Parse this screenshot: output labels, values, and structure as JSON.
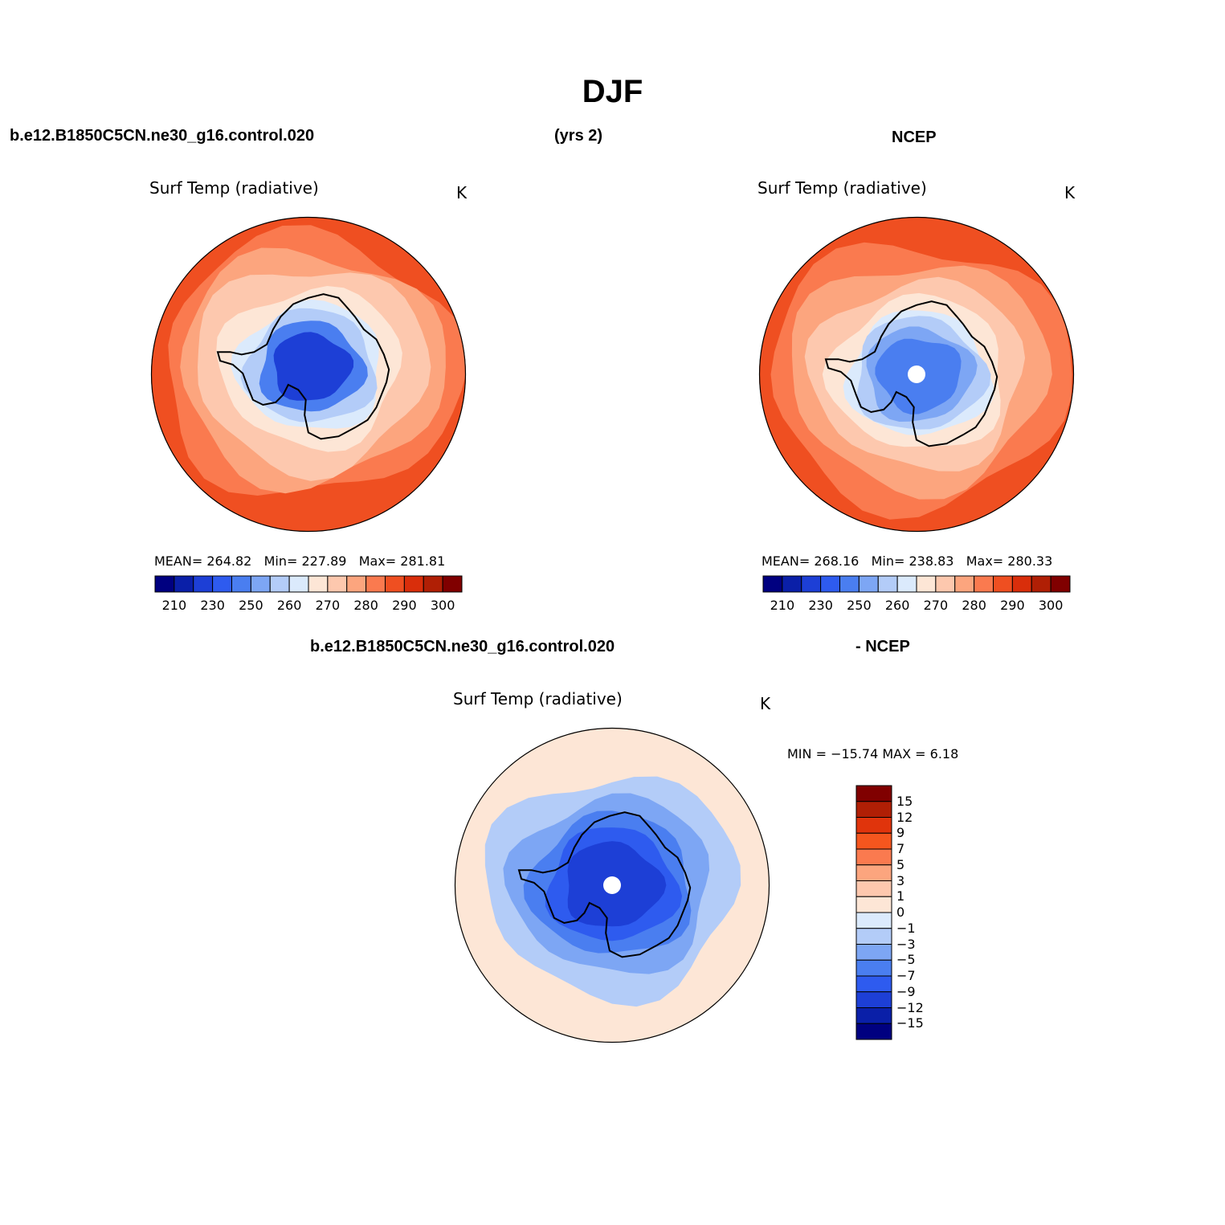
{
  "figure": {
    "title": "DJF",
    "case_label": "b.e12.B1850C5CN.ne30_g16.control.020",
    "years_label": "(yrs 2)",
    "obs_label": "NCEP",
    "diff_case_label": "b.e12.B1850C5CN.ne30_g16.control.020",
    "diff_obs_label": "- NCEP"
  },
  "colors": {
    "abs_scale": [
      "#000080",
      "#0a1fa8",
      "#1d3fd6",
      "#2e5bef",
      "#4a7ef0",
      "#7da6f4",
      "#b3ccf8",
      "#dbeafc",
      "#fde6d6",
      "#fdc8ae",
      "#fca57e",
      "#fa7a4f",
      "#ef4f21",
      "#d92e0b",
      "#b01f05",
      "#800000"
    ],
    "diff_scale": [
      "#800000",
      "#b01f05",
      "#e0340c",
      "#f5561e",
      "#fa7a4f",
      "#fca57e",
      "#fdc8ae",
      "#fde6d6",
      "#dbeafc",
      "#b3ccf8",
      "#7da6f4",
      "#4a7ef0",
      "#2e5bef",
      "#1d3fd6",
      "#0a1fa8",
      "#000080"
    ]
  },
  "chart_data": [
    {
      "type": "heatmap",
      "projection": "south-polar-stereographic",
      "title": "Surf Temp (radiative)",
      "units": "K",
      "mean_label": "MEAN=",
      "mean": "264.82",
      "min_label": "Min=",
      "min": "227.89",
      "max_label": "Max=",
      "max": "281.81",
      "colorbar_ticks": [
        "210",
        "230",
        "250",
        "260",
        "270",
        "280",
        "290",
        "300"
      ],
      "colorbar_levels": 16,
      "field_levels_outer_to_inner": [
        12,
        11,
        10,
        9,
        8,
        7,
        6,
        4,
        2
      ]
    },
    {
      "type": "heatmap",
      "projection": "south-polar-stereographic",
      "title": "Surf Temp (radiative)",
      "units": "K",
      "mean_label": "MEAN=",
      "mean": "268.16",
      "min_label": "Min=",
      "min": "238.83",
      "max_label": "Max=",
      "max": "280.33",
      "colorbar_ticks": [
        "210",
        "230",
        "250",
        "260",
        "270",
        "280",
        "290",
        "300"
      ],
      "colorbar_levels": 16,
      "field_levels_outer_to_inner": [
        12,
        11,
        10,
        9,
        8,
        7,
        6,
        5,
        4
      ]
    },
    {
      "type": "heatmap",
      "projection": "south-polar-stereographic",
      "title": "Surf Temp (radiative)",
      "units": "K",
      "min_max_text": "MIN = −15.74 MAX =    6.18",
      "colorbar_ticks": [
        "15",
        "12",
        "9",
        "7",
        "5",
        "3",
        "1",
        "0",
        "−1",
        "−3",
        "−5",
        "−7",
        "−9",
        "−12",
        "−15"
      ],
      "colorbar_levels": 16,
      "field_levels_outer_to_inner": [
        7,
        9,
        10,
        11,
        12,
        13
      ]
    }
  ]
}
